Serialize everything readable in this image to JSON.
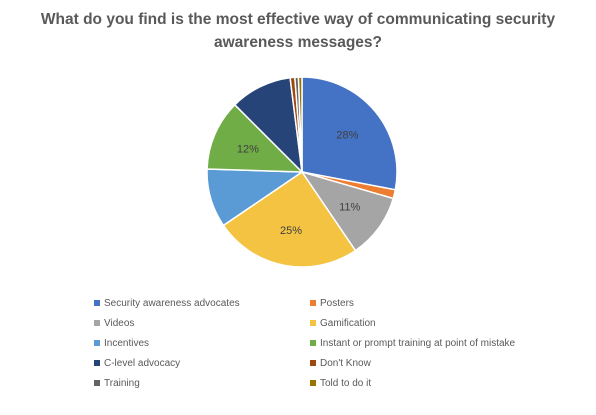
{
  "chart_data": {
    "type": "pie",
    "title": "What do you find is the most effective way of communicating security awareness messages?",
    "title_lines": [
      "What do you find is the most effective way of communicating security",
      "awareness messages?"
    ],
    "legend_position": "bottom",
    "slices": [
      {
        "label": "Security awareness advocates",
        "value": 28,
        "color": "#4472C4",
        "data_label": "28%"
      },
      {
        "label": "Posters",
        "value": 1.5,
        "color": "#ED7D31",
        "data_label": ""
      },
      {
        "label": "Videos",
        "value": 11,
        "color": "#A5A5A5",
        "data_label": "11%"
      },
      {
        "label": "Gamification",
        "value": 25,
        "color": "#F4C342",
        "data_label": "25%"
      },
      {
        "label": "Incentives",
        "value": 10,
        "color": "#5B9BD5",
        "data_label": ""
      },
      {
        "label": "Instant or prompt training at point of mistake",
        "value": 12,
        "color": "#70AD47",
        "data_label": "12%"
      },
      {
        "label": "C-level advocacy",
        "value": 10.5,
        "color": "#264478",
        "data_label": ""
      },
      {
        "label": "Don't Know",
        "value": 0.8,
        "color": "#9E480E",
        "data_label": ""
      },
      {
        "label": "Training",
        "value": 0.6,
        "color": "#636363",
        "data_label": ""
      },
      {
        "label": "Told to do it",
        "value": 0.6,
        "color": "#997300",
        "data_label": ""
      }
    ]
  }
}
